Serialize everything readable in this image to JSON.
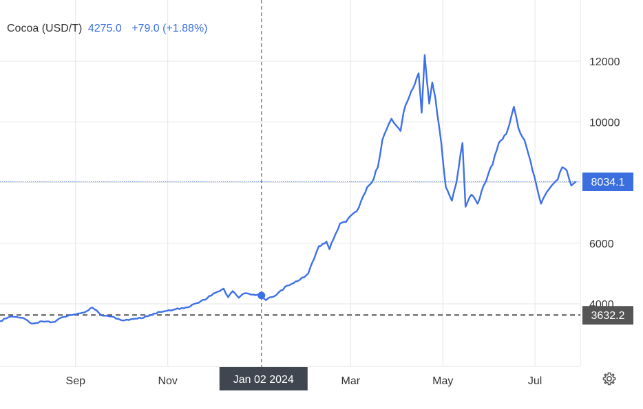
{
  "header": {
    "name": "Cocoa (USD/T)",
    "value": "4275.0",
    "change": "+79.0 (+1.88%)"
  },
  "crosshair_label": "Jan 02 2024",
  "settings_icon": "gear-icon",
  "colors": {
    "line": "#3d6fe8",
    "accent": "#3b6fe0",
    "grid": "#e6e6e6",
    "axis_text": "#333333",
    "ref_dark": "#555555"
  },
  "chart_data": {
    "type": "line",
    "title": "",
    "xlabel": "",
    "ylabel": "",
    "ylim": [
      2000,
      14000
    ],
    "xlim": [
      "2023-07-13",
      "2024-07-31"
    ],
    "x_ticks": [
      {
        "label": "Sep",
        "date": "2023-09-01"
      },
      {
        "label": "Nov",
        "date": "2023-11-01"
      },
      {
        "label": "Mar",
        "date": "2024-03-01"
      },
      {
        "label": "May",
        "date": "2024-05-01"
      },
      {
        "label": "Jul",
        "date": "2024-07-01"
      }
    ],
    "y_ticks": [
      4000,
      6000,
      10000,
      12000
    ],
    "grid": true,
    "reference_lines": [
      {
        "value": 8034.1,
        "label": "8034.1",
        "style": "dotted",
        "color": "#3b6fe0"
      },
      {
        "value": 3632.2,
        "label": "3632.2",
        "style": "dashed",
        "color": "#555555"
      }
    ],
    "crosshair": {
      "date": "2024-01-02",
      "value": 4275
    },
    "series": [
      {
        "values": [
          [
            "2023-07-13",
            3430
          ],
          [
            "2023-07-20",
            3580
          ],
          [
            "2023-07-27",
            3540
          ],
          [
            "2023-08-03",
            3350
          ],
          [
            "2023-08-10",
            3420
          ],
          [
            "2023-08-17",
            3400
          ],
          [
            "2023-08-24",
            3570
          ],
          [
            "2023-08-31",
            3650
          ],
          [
            "2023-09-07",
            3720
          ],
          [
            "2023-09-12",
            3880
          ],
          [
            "2023-09-18",
            3620
          ],
          [
            "2023-09-25",
            3580
          ],
          [
            "2023-10-02",
            3450
          ],
          [
            "2023-10-09",
            3500
          ],
          [
            "2023-10-16",
            3540
          ],
          [
            "2023-10-23",
            3680
          ],
          [
            "2023-10-30",
            3760
          ],
          [
            "2023-11-06",
            3820
          ],
          [
            "2023-11-13",
            3880
          ],
          [
            "2023-11-20",
            4020
          ],
          [
            "2023-11-27",
            4180
          ],
          [
            "2023-12-04",
            4400
          ],
          [
            "2023-12-08",
            4500
          ],
          [
            "2023-12-11",
            4220
          ],
          [
            "2023-12-14",
            4420
          ],
          [
            "2023-12-18",
            4200
          ],
          [
            "2023-12-22",
            4350
          ],
          [
            "2024-01-02",
            4275
          ],
          [
            "2024-01-05",
            4120
          ],
          [
            "2024-01-12",
            4300
          ],
          [
            "2024-01-19",
            4600
          ],
          [
            "2024-01-26",
            4750
          ],
          [
            "2024-02-02",
            5000
          ],
          [
            "2024-02-06",
            5500
          ],
          [
            "2024-02-09",
            5900
          ],
          [
            "2024-02-14",
            6050
          ],
          [
            "2024-02-16",
            5800
          ],
          [
            "2024-02-20",
            6300
          ],
          [
            "2024-02-23",
            6650
          ],
          [
            "2024-02-27",
            6700
          ],
          [
            "2024-03-01",
            6900
          ],
          [
            "2024-03-05",
            7050
          ],
          [
            "2024-03-08",
            7400
          ],
          [
            "2024-03-12",
            7850
          ],
          [
            "2024-03-15",
            8000
          ],
          [
            "2024-03-19",
            8500
          ],
          [
            "2024-03-22",
            9400
          ],
          [
            "2024-03-26",
            9900
          ],
          [
            "2024-03-28",
            10100
          ],
          [
            "2024-04-03",
            9700
          ],
          [
            "2024-04-05",
            10300
          ],
          [
            "2024-04-10",
            11000
          ],
          [
            "2024-04-15",
            11600
          ],
          [
            "2024-04-17",
            10300
          ],
          [
            "2024-04-19",
            12200
          ],
          [
            "2024-04-22",
            10600
          ],
          [
            "2024-04-24",
            11300
          ],
          [
            "2024-04-26",
            10800
          ],
          [
            "2024-04-30",
            9300
          ],
          [
            "2024-05-03",
            7850
          ],
          [
            "2024-05-07",
            7400
          ],
          [
            "2024-05-10",
            8000
          ],
          [
            "2024-05-14",
            9300
          ],
          [
            "2024-05-16",
            7200
          ],
          [
            "2024-05-20",
            7600
          ],
          [
            "2024-05-24",
            7300
          ],
          [
            "2024-05-28",
            7900
          ],
          [
            "2024-06-03",
            8600
          ],
          [
            "2024-06-07",
            9300
          ],
          [
            "2024-06-12",
            9600
          ],
          [
            "2024-06-14",
            9900
          ],
          [
            "2024-06-17",
            10500
          ],
          [
            "2024-06-20",
            9800
          ],
          [
            "2024-06-24",
            9400
          ],
          [
            "2024-06-28",
            8700
          ],
          [
            "2024-07-02",
            7900
          ],
          [
            "2024-07-05",
            7300
          ],
          [
            "2024-07-09",
            7700
          ],
          [
            "2024-07-12",
            7900
          ],
          [
            "2024-07-16",
            8100
          ],
          [
            "2024-07-19",
            8500
          ],
          [
            "2024-07-22",
            8400
          ],
          [
            "2024-07-25",
            7900
          ],
          [
            "2024-07-28",
            8034
          ]
        ]
      }
    ]
  }
}
